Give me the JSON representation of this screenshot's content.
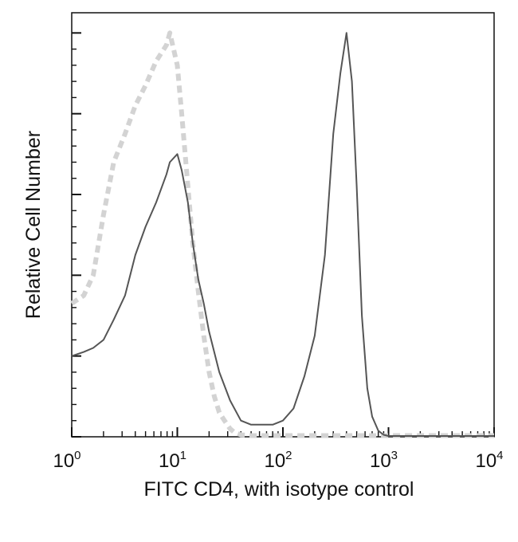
{
  "chart_data": {
    "type": "line",
    "title": "",
    "xlabel": "FITC CD4, with isotype control",
    "ylabel": "Relative Cell Number",
    "x_scale": "log",
    "xlim": [
      1,
      10000
    ],
    "ylim": [
      0,
      1.05
    ],
    "grid": false,
    "legend": "none",
    "x_ticks": [
      {
        "base": "10",
        "exp": "0"
      },
      {
        "base": "10",
        "exp": "1"
      },
      {
        "base": "10",
        "exp": "2"
      },
      {
        "base": "10",
        "exp": "3"
      },
      {
        "base": "10",
        "exp": "4"
      }
    ],
    "series": [
      {
        "style": "dashed",
        "color": "#d3d3d3",
        "x": [
          1.0,
          1.3,
          1.6,
          2.0,
          2.5,
          3.2,
          4.0,
          5.0,
          6.3,
          7.9,
          8.5,
          10,
          11,
          12.6,
          14,
          15.8,
          17.8,
          20,
          22.4,
          25,
          28,
          31.6,
          35,
          40,
          50,
          100,
          1000,
          10000
        ],
        "y": [
          0.33,
          0.35,
          0.4,
          0.55,
          0.68,
          0.75,
          0.82,
          0.87,
          0.93,
          0.97,
          1.0,
          0.92,
          0.8,
          0.62,
          0.48,
          0.36,
          0.25,
          0.16,
          0.1,
          0.06,
          0.04,
          0.02,
          0.01,
          0.005,
          0.003,
          0.003,
          0.003,
          0.003
        ]
      },
      {
        "style": "solid",
        "color": "#555555",
        "x": [
          1.0,
          1.3,
          1.6,
          2.0,
          2.5,
          3.2,
          4.0,
          5.0,
          6.3,
          7.9,
          8.5,
          10,
          11,
          12.6,
          14,
          15.8,
          17.8,
          20,
          25,
          31.6,
          40,
          50,
          63,
          80,
          100,
          126,
          160,
          200,
          250,
          300,
          350,
          400,
          450,
          500,
          560,
          630,
          700,
          800,
          900,
          1000,
          2000,
          10000
        ],
        "y": [
          0.2,
          0.21,
          0.22,
          0.24,
          0.29,
          0.35,
          0.45,
          0.52,
          0.58,
          0.65,
          0.68,
          0.7,
          0.66,
          0.58,
          0.48,
          0.39,
          0.33,
          0.26,
          0.16,
          0.09,
          0.04,
          0.03,
          0.03,
          0.03,
          0.04,
          0.07,
          0.15,
          0.25,
          0.45,
          0.75,
          0.9,
          1.0,
          0.88,
          0.62,
          0.3,
          0.12,
          0.05,
          0.015,
          0.005,
          0.002,
          0.002,
          0.002
        ]
      }
    ]
  }
}
